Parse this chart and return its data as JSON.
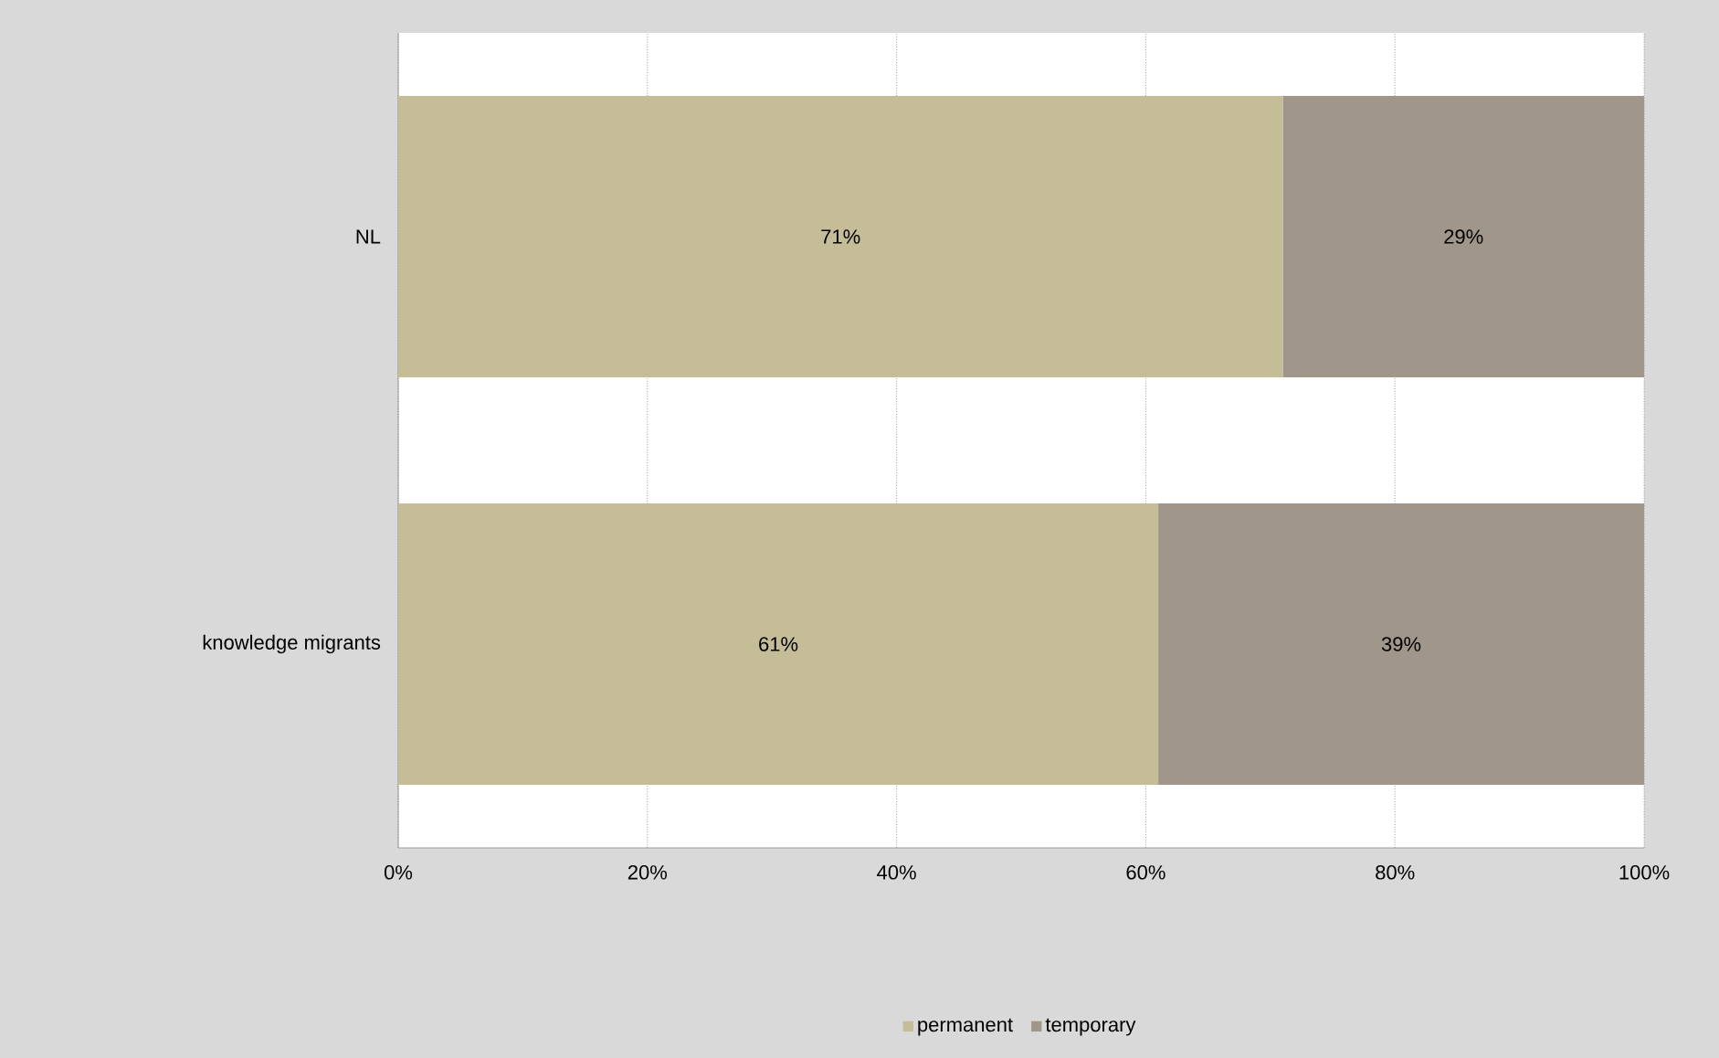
{
  "chart_data": {
    "type": "bar",
    "orientation": "horizontal",
    "stacked": true,
    "categories": [
      "NL",
      "knowledge migrants"
    ],
    "series": [
      {
        "name": "permanent",
        "color": "#c4bd97",
        "values": [
          71,
          61
        ],
        "value_labels": [
          "71%",
          "61%"
        ]
      },
      {
        "name": "temporary",
        "color": "#a0978a",
        "values": [
          29,
          39
        ],
        "value_labels": [
          "29%",
          "39%"
        ]
      }
    ],
    "xlim": [
      0,
      100
    ],
    "xticks": [
      {
        "value": 0,
        "label": "0%"
      },
      {
        "value": 20,
        "label": "20%"
      },
      {
        "value": 40,
        "label": "40%"
      },
      {
        "value": 60,
        "label": "60%"
      },
      {
        "value": 80,
        "label": "80%"
      },
      {
        "value": 100,
        "label": "100%"
      }
    ],
    "grid": "x",
    "legend": "bottom"
  }
}
